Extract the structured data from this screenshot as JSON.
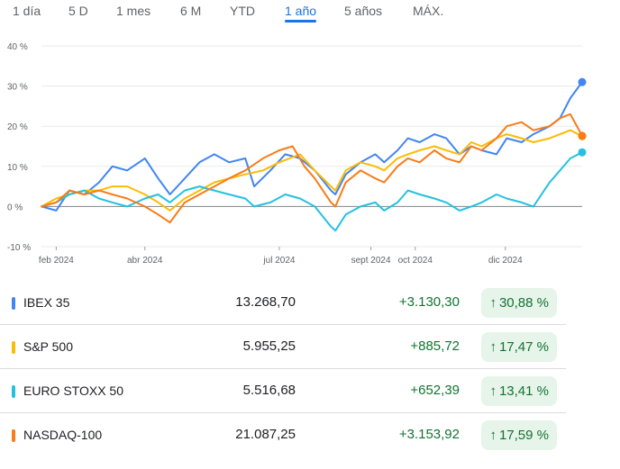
{
  "range_tabs": [
    {
      "label": "1 día",
      "active": false
    },
    {
      "label": "5 D",
      "active": false
    },
    {
      "label": "1 mes",
      "active": false
    },
    {
      "label": "6 M",
      "active": false
    },
    {
      "label": "YTD",
      "active": false
    },
    {
      "label": "1 año",
      "active": true
    },
    {
      "label": "5 años",
      "active": false
    },
    {
      "label": "MÁX.",
      "active": false
    }
  ],
  "indices": [
    {
      "name": "IBEX 35",
      "price": "13.268,70",
      "change": "+3.130,30",
      "percent": "30,88 %",
      "color": "#4285f4"
    },
    {
      "name": "S&P 500",
      "price": "5.955,25",
      "change": "+885,72",
      "percent": "17,47 %",
      "color": "#fbbc04"
    },
    {
      "name": "EURO STOXX 50",
      "price": "5.516,68",
      "change": "+652,39",
      "percent": "13,41 %",
      "color": "#24c1e0"
    },
    {
      "name": "NASDAQ-100",
      "price": "21.087,25",
      "change": "+3.153,92",
      "percent": "17,59 %",
      "color": "#fa7b17"
    }
  ],
  "badge_arrow": "↑",
  "chart_data": {
    "type": "line",
    "y_ticks": [
      "40 %",
      "30 %",
      "20 %",
      "10 %",
      "0 %",
      "-10 %"
    ],
    "x_ticks": [
      "feb 2024",
      "abr 2024",
      "jul 2024",
      "sept 2024",
      "oct 2024",
      "dic 2024"
    ],
    "ylim": [
      -10,
      40
    ],
    "xlim": [
      "2024-01-22",
      "2025-01-22"
    ],
    "grid": true,
    "baseline": 0,
    "series": [
      {
        "name": "IBEX 35",
        "color": "#4285f4",
        "points": [
          [
            "2024-01-22",
            0
          ],
          [
            "2024-02-01",
            -1
          ],
          [
            "2024-02-10",
            4
          ],
          [
            "2024-02-20",
            3
          ],
          [
            "2024-03-01",
            6
          ],
          [
            "2024-03-10",
            10
          ],
          [
            "2024-03-20",
            9
          ],
          [
            "2024-04-01",
            12
          ],
          [
            "2024-04-10",
            7
          ],
          [
            "2024-04-18",
            3
          ],
          [
            "2024-04-28",
            7
          ],
          [
            "2024-05-08",
            11
          ],
          [
            "2024-05-18",
            13
          ],
          [
            "2024-05-28",
            11
          ],
          [
            "2024-06-08",
            12
          ],
          [
            "2024-06-14",
            5
          ],
          [
            "2024-06-25",
            9
          ],
          [
            "2024-07-05",
            13
          ],
          [
            "2024-07-15",
            12
          ],
          [
            "2024-07-25",
            9
          ],
          [
            "2024-08-05",
            4
          ],
          [
            "2024-08-08",
            3
          ],
          [
            "2024-08-15",
            8
          ],
          [
            "2024-08-25",
            11
          ],
          [
            "2024-09-04",
            13
          ],
          [
            "2024-09-10",
            11
          ],
          [
            "2024-09-19",
            14
          ],
          [
            "2024-09-26",
            17
          ],
          [
            "2024-10-04",
            16
          ],
          [
            "2024-10-14",
            18
          ],
          [
            "2024-10-22",
            17
          ],
          [
            "2024-10-31",
            13
          ],
          [
            "2024-11-08",
            15
          ],
          [
            "2024-11-15",
            14
          ],
          [
            "2024-11-25",
            13
          ],
          [
            "2024-12-02",
            17
          ],
          [
            "2024-12-12",
            16
          ],
          [
            "2024-12-20",
            18
          ],
          [
            "2024-12-31",
            20
          ],
          [
            "2025-01-07",
            22
          ],
          [
            "2025-01-14",
            27
          ],
          [
            "2025-01-22",
            31
          ]
        ]
      },
      {
        "name": "S&P 500",
        "color": "#fbbc04",
        "points": [
          [
            "2024-01-22",
            0
          ],
          [
            "2024-02-01",
            2
          ],
          [
            "2024-02-10",
            3
          ],
          [
            "2024-02-20",
            4
          ],
          [
            "2024-03-01",
            4
          ],
          [
            "2024-03-10",
            5
          ],
          [
            "2024-03-20",
            5
          ],
          [
            "2024-04-01",
            3
          ],
          [
            "2024-04-10",
            1
          ],
          [
            "2024-04-18",
            -1
          ],
          [
            "2024-04-28",
            2
          ],
          [
            "2024-05-08",
            4
          ],
          [
            "2024-05-18",
            6
          ],
          [
            "2024-05-28",
            7
          ],
          [
            "2024-06-08",
            8
          ],
          [
            "2024-06-20",
            9
          ],
          [
            "2024-07-01",
            11
          ],
          [
            "2024-07-15",
            13
          ],
          [
            "2024-07-25",
            9
          ],
          [
            "2024-08-05",
            5
          ],
          [
            "2024-08-08",
            4
          ],
          [
            "2024-08-15",
            9
          ],
          [
            "2024-08-25",
            11
          ],
          [
            "2024-09-04",
            10
          ],
          [
            "2024-09-10",
            9
          ],
          [
            "2024-09-19",
            12
          ],
          [
            "2024-09-26",
            13
          ],
          [
            "2024-10-04",
            14
          ],
          [
            "2024-10-14",
            15
          ],
          [
            "2024-10-22",
            14
          ],
          [
            "2024-10-31",
            13
          ],
          [
            "2024-11-08",
            16
          ],
          [
            "2024-11-15",
            15
          ],
          [
            "2024-11-25",
            17
          ],
          [
            "2024-12-02",
            18
          ],
          [
            "2024-12-12",
            17
          ],
          [
            "2024-12-20",
            16
          ],
          [
            "2024-12-31",
            17
          ],
          [
            "2025-01-07",
            18
          ],
          [
            "2025-01-14",
            19
          ],
          [
            "2025-01-22",
            17.5
          ]
        ]
      },
      {
        "name": "EURO STOXX 50",
        "color": "#24c1e0",
        "points": [
          [
            "2024-01-22",
            0
          ],
          [
            "2024-02-01",
            1
          ],
          [
            "2024-02-10",
            3
          ],
          [
            "2024-02-20",
            4
          ],
          [
            "2024-03-01",
            2
          ],
          [
            "2024-03-10",
            1
          ],
          [
            "2024-03-20",
            0
          ],
          [
            "2024-04-01",
            2
          ],
          [
            "2024-04-10",
            3
          ],
          [
            "2024-04-18",
            1
          ],
          [
            "2024-04-28",
            4
          ],
          [
            "2024-05-08",
            5
          ],
          [
            "2024-05-18",
            4
          ],
          [
            "2024-05-28",
            3
          ],
          [
            "2024-06-08",
            2
          ],
          [
            "2024-06-14",
            0
          ],
          [
            "2024-06-25",
            1
          ],
          [
            "2024-07-05",
            3
          ],
          [
            "2024-07-15",
            2
          ],
          [
            "2024-07-25",
            0
          ],
          [
            "2024-08-05",
            -5
          ],
          [
            "2024-08-08",
            -6
          ],
          [
            "2024-08-15",
            -2
          ],
          [
            "2024-08-25",
            0
          ],
          [
            "2024-09-04",
            1
          ],
          [
            "2024-09-10",
            -1
          ],
          [
            "2024-09-19",
            1
          ],
          [
            "2024-09-26",
            4
          ],
          [
            "2024-10-04",
            3
          ],
          [
            "2024-10-14",
            2
          ],
          [
            "2024-10-22",
            1
          ],
          [
            "2024-10-31",
            -1
          ],
          [
            "2024-11-08",
            0
          ],
          [
            "2024-11-15",
            1
          ],
          [
            "2024-11-25",
            3
          ],
          [
            "2024-12-02",
            2
          ],
          [
            "2024-12-12",
            1
          ],
          [
            "2024-12-20",
            0
          ],
          [
            "2024-12-31",
            6
          ],
          [
            "2025-01-07",
            9
          ],
          [
            "2025-01-14",
            12
          ],
          [
            "2025-01-22",
            13.5
          ]
        ]
      },
      {
        "name": "NASDAQ-100",
        "color": "#fa7b17",
        "points": [
          [
            "2024-01-22",
            0
          ],
          [
            "2024-02-01",
            1
          ],
          [
            "2024-02-10",
            4
          ],
          [
            "2024-02-20",
            3
          ],
          [
            "2024-03-01",
            4
          ],
          [
            "2024-03-10",
            3
          ],
          [
            "2024-03-20",
            2
          ],
          [
            "2024-04-01",
            0
          ],
          [
            "2024-04-10",
            -2
          ],
          [
            "2024-04-18",
            -4
          ],
          [
            "2024-04-28",
            1
          ],
          [
            "2024-05-08",
            3
          ],
          [
            "2024-05-18",
            5
          ],
          [
            "2024-05-28",
            7
          ],
          [
            "2024-06-08",
            9
          ],
          [
            "2024-06-20",
            12
          ],
          [
            "2024-07-01",
            14
          ],
          [
            "2024-07-10",
            15
          ],
          [
            "2024-07-18",
            10
          ],
          [
            "2024-07-25",
            7
          ],
          [
            "2024-08-05",
            1
          ],
          [
            "2024-08-08",
            0
          ],
          [
            "2024-08-15",
            6
          ],
          [
            "2024-08-25",
            9
          ],
          [
            "2024-09-04",
            7
          ],
          [
            "2024-09-10",
            6
          ],
          [
            "2024-09-19",
            10
          ],
          [
            "2024-09-26",
            12
          ],
          [
            "2024-10-04",
            11
          ],
          [
            "2024-10-14",
            14
          ],
          [
            "2024-10-22",
            12
          ],
          [
            "2024-10-31",
            11
          ],
          [
            "2024-11-08",
            15
          ],
          [
            "2024-11-15",
            14
          ],
          [
            "2024-11-25",
            17
          ],
          [
            "2024-12-02",
            20
          ],
          [
            "2024-12-12",
            21
          ],
          [
            "2024-12-20",
            19
          ],
          [
            "2024-12-31",
            20
          ],
          [
            "2025-01-07",
            22
          ],
          [
            "2025-01-14",
            23
          ],
          [
            "2025-01-22",
            17.6
          ]
        ]
      }
    ]
  }
}
